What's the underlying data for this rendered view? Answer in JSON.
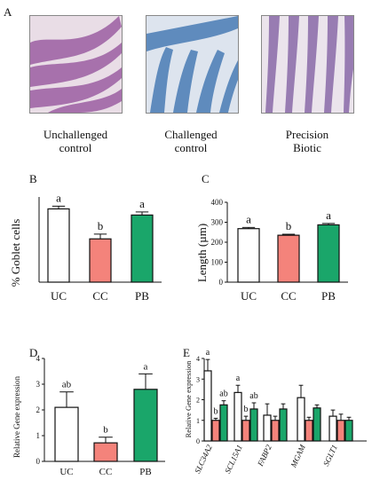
{
  "panel_labels": {
    "a": "A",
    "b": "B",
    "c": "C",
    "d": "D",
    "e": "E"
  },
  "micrographs": [
    {
      "caption_line1": "Unchallenged",
      "caption_line2": "control",
      "tissue": "#9c5fa3",
      "background": "#e9dde6"
    },
    {
      "caption_line1": "Challenged",
      "caption_line2": "control",
      "tissue": "#4a7cb5",
      "background": "#dde4ee"
    },
    {
      "caption_line1": "Precision",
      "caption_line2": "Biotic",
      "tissue": "#8a6aa8",
      "background": "#ebe4ec"
    }
  ],
  "colors": {
    "UC": "#ffffff",
    "CC": "#f4837b",
    "PB": "#1aa66a",
    "stroke": "#111111"
  },
  "chart_data": [
    {
      "id": "B",
      "type": "bar",
      "categories": [
        "UC",
        "CC",
        "PB"
      ],
      "values": [
        21.5,
        12.7,
        19.7
      ],
      "errors": [
        0.8,
        1.4,
        0.9
      ],
      "letters": [
        "a",
        "b",
        "a"
      ],
      "ylabel": "% Goblet cells",
      "ylim": [
        0,
        25
      ],
      "yticks": [],
      "grid": false
    },
    {
      "id": "C",
      "type": "bar",
      "categories": [
        "UC",
        "CC",
        "PB"
      ],
      "values": [
        268,
        235,
        287
      ],
      "errors": [
        6,
        5,
        7
      ],
      "letters": [
        "a",
        "b",
        "a"
      ],
      "ylabel": "Length (µm)",
      "ylim": [
        0,
        400
      ],
      "yticks": [
        "0",
        "100",
        "200",
        "300",
        "400"
      ],
      "grid": false
    },
    {
      "id": "D",
      "type": "bar",
      "categories": [
        "UC",
        "CC",
        "PB"
      ],
      "values": [
        2.1,
        0.72,
        2.8
      ],
      "errors": [
        0.6,
        0.22,
        0.6
      ],
      "letters": [
        "ab",
        "b",
        "a"
      ],
      "ylabel": "Relative Gene expression",
      "ylim": [
        0,
        4
      ],
      "yticks": [
        "0",
        "1",
        "2",
        "3",
        "4"
      ],
      "grid": false
    },
    {
      "id": "E",
      "type": "bar",
      "categories": [
        "SLC34A2",
        "SCL15A1",
        "FABP2",
        "MGAM",
        "SGLT1"
      ],
      "series": [
        {
          "values": [
            3.4,
            2.35,
            1.25,
            2.1,
            1.2
          ],
          "errors": [
            0.55,
            0.35,
            0.55,
            0.6,
            0.3
          ],
          "letters": [
            "a",
            "a",
            "",
            "",
            ""
          ]
        },
        {
          "values": [
            1.0,
            1.0,
            1.0,
            1.0,
            1.0
          ],
          "errors": [
            0.1,
            0.2,
            0.2,
            0.15,
            0.3
          ],
          "letters": [
            "b",
            "b",
            "",
            "",
            ""
          ]
        },
        {
          "values": [
            1.75,
            1.55,
            1.55,
            1.6,
            1.0
          ],
          "errors": [
            0.2,
            0.3,
            0.25,
            0.15,
            0.15
          ],
          "letters": [
            "ab",
            "ab",
            "",
            "",
            ""
          ]
        }
      ],
      "ylabel": "Relative Gene expression",
      "ylim": [
        0,
        4
      ],
      "yticks": [
        "0",
        "1",
        "2",
        "3",
        "4"
      ],
      "grid": false
    }
  ]
}
